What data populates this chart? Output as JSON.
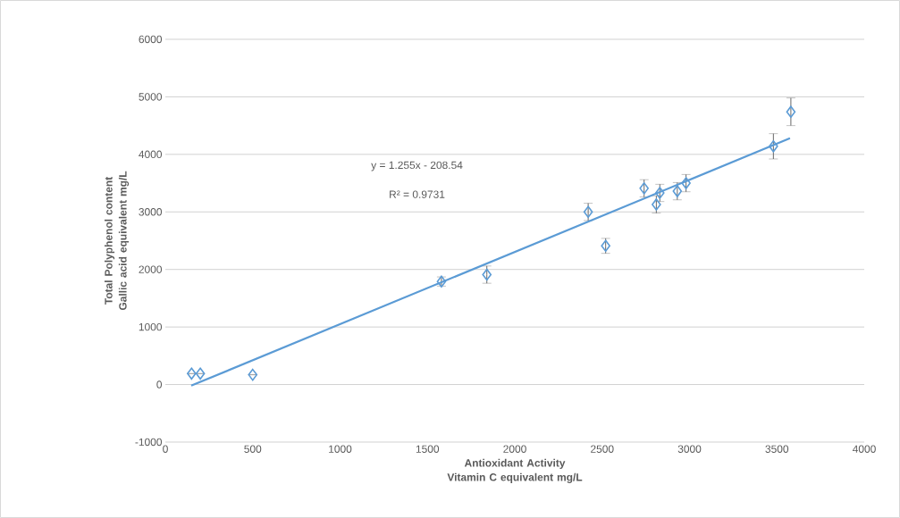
{
  "chart_data": {
    "type": "scatter",
    "xlabel": "Antioxidant Activity Vitamin C equivalent mg/L",
    "ylabel": "Total Polyphenol content Gallic acid equivalent mg/L",
    "annotations": [
      "y = 1.255x - 208.54",
      "R² = 0.9731"
    ],
    "xlim": [
      0,
      4000
    ],
    "xticks": [
      0,
      500,
      1000,
      1500,
      2000,
      2500,
      3000,
      3500,
      4000
    ],
    "ylim": [
      -1000,
      6000
    ],
    "yticks": [
      -1000,
      0,
      1000,
      2000,
      3000,
      4000,
      5000,
      6000
    ],
    "grid": "y",
    "marker": "diamond",
    "series": [
      {
        "color": "#5b9bd5",
        "x": [
          150,
          200,
          500,
          1580,
          1840,
          2420,
          2520,
          2740,
          2810,
          2830,
          2930,
          2980,
          3480,
          3580
        ],
        "values": [
          190,
          190,
          170,
          1790,
          1910,
          3000,
          2410,
          3410,
          3130,
          3330,
          3360,
          3500,
          4140,
          4740
        ],
        "errors": [
          null,
          null,
          null,
          80,
          150,
          150,
          130,
          150,
          150,
          150,
          150,
          150,
          220,
          240
        ]
      },
      {
        "type": "line",
        "color": "#5b9bd5",
        "marker": "none",
        "x": [
          148,
          3575
        ],
        "values": [
          -20,
          4280
        ]
      }
    ]
  }
}
